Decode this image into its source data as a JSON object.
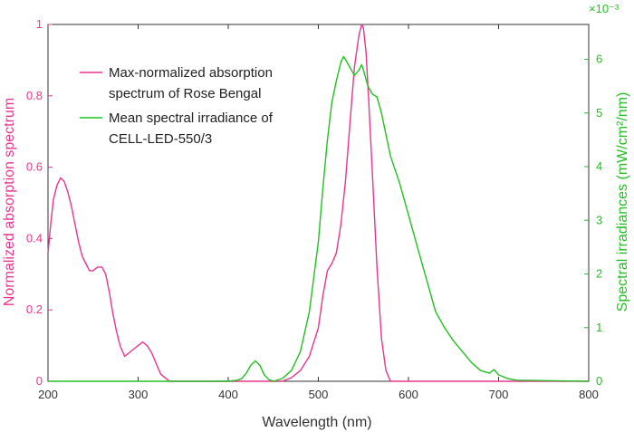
{
  "colors": {
    "left": "#e8368f",
    "right": "#22c022",
    "axis": "#333333"
  },
  "chart_data": {
    "type": "line",
    "title": "",
    "xlabel": "Wavelength (nm)",
    "ylabel_left": "Normalized absorption spectrum",
    "ylabel_right": "Spectral irradiances (mW/cm²/nm)",
    "right_exponent": "×10⁻³",
    "xlim": [
      200,
      800
    ],
    "ylim_left": [
      0,
      1
    ],
    "ylim_right": [
      0,
      6.65
    ],
    "x_ticks": [
      "200",
      "300",
      "400",
      "500",
      "600",
      "700",
      "800"
    ],
    "y_left_ticks": [
      "0",
      "0.2",
      "0.4",
      "0.6",
      "0.8",
      "1"
    ],
    "y_right_ticks": [
      "0",
      "1",
      "2",
      "3",
      "4",
      "5",
      "6"
    ],
    "grid": false,
    "legend_position": "top-left",
    "legend": [
      {
        "lines": [
          "Max-normalized absorption",
          "spectrum of Rose Bengal"
        ],
        "color": "#e8368f"
      },
      {
        "lines": [
          "Mean spectral irradiance of",
          "CELL-LED-550/3"
        ],
        "color": "#22c022"
      }
    ],
    "series": [
      {
        "axis": "left",
        "color": "#e8368f",
        "x": [
          200,
          203,
          206,
          210,
          214,
          218,
          222,
          226,
          230,
          234,
          238,
          242,
          246,
          250,
          255,
          260,
          264,
          268,
          272,
          276,
          280,
          285,
          290,
          295,
          300,
          305,
          310,
          315,
          320,
          325,
          330,
          335,
          340,
          345,
          360,
          400,
          440,
          460,
          470,
          480,
          490,
          500,
          505,
          510,
          515,
          520,
          525,
          530,
          535,
          540,
          545,
          548,
          550,
          553,
          556,
          560,
          565,
          570,
          575,
          580,
          600,
          700,
          800
        ],
        "y": [
          0.36,
          0.44,
          0.51,
          0.55,
          0.57,
          0.56,
          0.53,
          0.49,
          0.44,
          0.39,
          0.35,
          0.33,
          0.31,
          0.31,
          0.32,
          0.32,
          0.3,
          0.25,
          0.19,
          0.14,
          0.1,
          0.07,
          0.08,
          0.09,
          0.1,
          0.11,
          0.1,
          0.08,
          0.05,
          0.02,
          0.01,
          0.0,
          0.0,
          0.0,
          0.0,
          0.0,
          0.0,
          0.0,
          0.01,
          0.03,
          0.07,
          0.15,
          0.24,
          0.31,
          0.33,
          0.36,
          0.44,
          0.56,
          0.72,
          0.88,
          0.97,
          1.0,
          0.99,
          0.92,
          0.78,
          0.58,
          0.32,
          0.12,
          0.03,
          0.0,
          0.0,
          0.0,
          0.0
        ]
      },
      {
        "axis": "right",
        "color": "#22c022",
        "x": [
          200,
          400,
          410,
          415,
          420,
          425,
          430,
          435,
          440,
          445,
          450,
          460,
          470,
          480,
          490,
          500,
          505,
          510,
          515,
          520,
          525,
          528,
          530,
          535,
          540,
          545,
          548,
          550,
          555,
          560,
          565,
          570,
          575,
          580,
          590,
          600,
          610,
          620,
          630,
          640,
          650,
          660,
          670,
          680,
          690,
          695,
          700,
          710,
          720,
          800
        ],
        "y": [
          0.0,
          0.0,
          0.02,
          0.05,
          0.15,
          0.3,
          0.38,
          0.3,
          0.12,
          0.03,
          0.0,
          0.05,
          0.2,
          0.55,
          1.3,
          2.6,
          3.6,
          4.5,
          5.2,
          5.6,
          5.95,
          6.05,
          6.0,
          5.85,
          5.7,
          5.8,
          5.9,
          5.8,
          5.5,
          5.35,
          5.3,
          5.0,
          4.6,
          4.2,
          3.7,
          3.1,
          2.5,
          1.9,
          1.3,
          1.0,
          0.75,
          0.55,
          0.35,
          0.2,
          0.15,
          0.22,
          0.12,
          0.05,
          0.02,
          0.0
        ]
      }
    ]
  }
}
